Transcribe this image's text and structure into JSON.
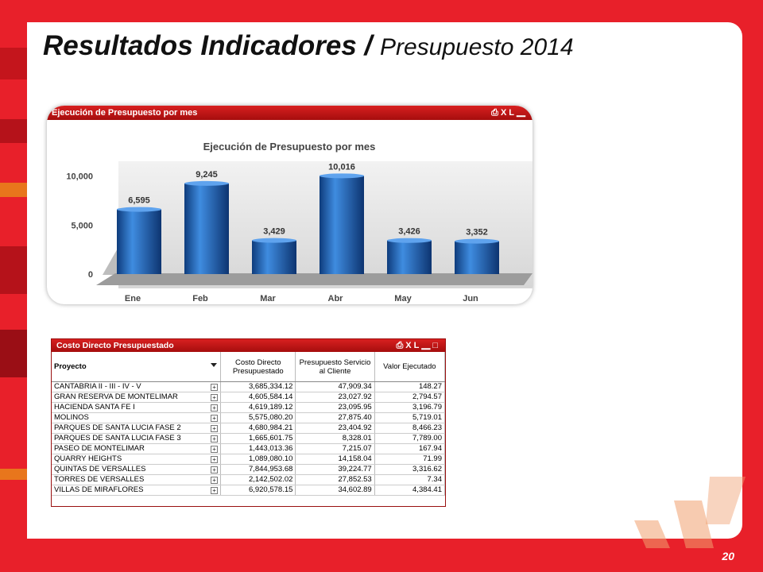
{
  "slide": {
    "title_main": "Resultados Indicadores / ",
    "title_sub": "Presupuesto 2014",
    "page_number": "20"
  },
  "chart_panel": {
    "header_title": "Ejecución de Presupuesto por mes",
    "icons": [
      "print-icon",
      "xl-icon",
      "minimize-icon"
    ],
    "icon_xl_label": "XL"
  },
  "chart_data": {
    "type": "bar",
    "title": "Ejecución de Presupuesto por mes",
    "categories": [
      "Ene",
      "Feb",
      "Mar",
      "Abr",
      "May",
      "Jun"
    ],
    "values": [
      6595,
      9245,
      3429,
      10016,
      3426,
      3352
    ],
    "value_labels": [
      "6,595",
      "9,245",
      "3,429",
      "10,016",
      "3,426",
      "3,352"
    ],
    "ylim": [
      0,
      11500
    ],
    "yticks": [
      0,
      5000,
      10000
    ],
    "ytick_labels": [
      "0",
      "5,000",
      "10,000"
    ],
    "xlabel": "",
    "ylabel": "",
    "grid": false,
    "bar_color": "#1f5fb0"
  },
  "table_panel": {
    "header_title": "Costo Directo Presupuestado",
    "icon_xl_label": "XL",
    "columns": [
      "Proyecto",
      "Costo Directo Presupuestado",
      "Presupuesto Servicio al Cliente",
      "Valor Ejecutado"
    ],
    "rows": [
      [
        "CANTABRIA II - III - IV - V",
        "3,685,334.12",
        "47,909.34",
        "148.27"
      ],
      [
        "GRAN RESERVA DE MONTELIMAR",
        "4,605,584.14",
        "23,027.92",
        "2,794.57"
      ],
      [
        "HACIENDA SANTA FE I",
        "4,619,189.12",
        "23,095.95",
        "3,196.79"
      ],
      [
        "MOLINOS",
        "5,575,080.20",
        "27,875.40",
        "5,719.01"
      ],
      [
        "PARQUES DE SANTA LUCIA FASE 2",
        "4,680,984.21",
        "23,404.92",
        "8,466.23"
      ],
      [
        "PARQUES DE SANTA LUCIA FASE 3",
        "1,665,601.75",
        "8,328.01",
        "7,789.00"
      ],
      [
        "PASEO DE MONTELIMAR",
        "1,443,013.36",
        "7,215.07",
        "167.94"
      ],
      [
        "QUARRY HEIGHTS",
        "1,089,080.10",
        "14,158.04",
        "71.99"
      ],
      [
        "QUINTAS DE VERSALLES",
        "7,844,953.68",
        "39,224.77",
        "3,316.62"
      ],
      [
        "TORRES DE VERSALLES",
        "2,142,502.02",
        "27,852.53",
        "7.34"
      ],
      [
        "VILLAS  DE MIRAFLORES",
        "6,920,578.15",
        "34,602.89",
        "4,384.41"
      ]
    ]
  }
}
